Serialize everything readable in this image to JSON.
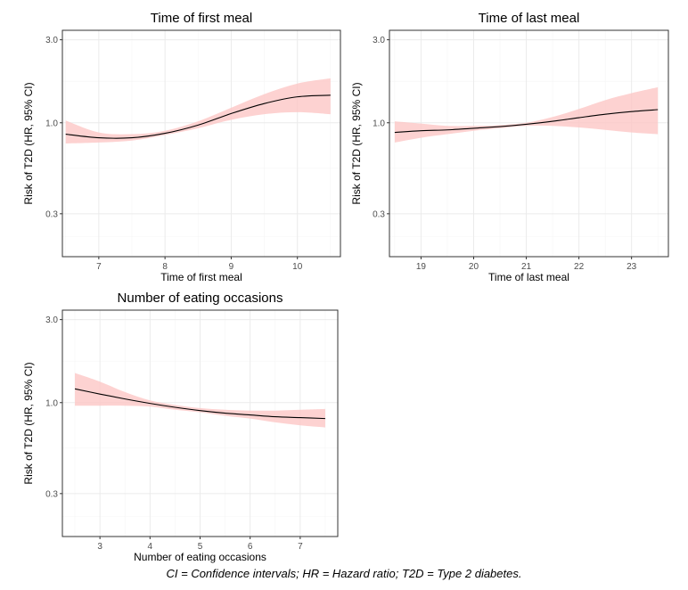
{
  "caption": "CI = Confidence intervals; HR = Hazard ratio; T2D = Type 2 diabetes.",
  "colors": {
    "band": "#fdc7c5",
    "line": "#000000",
    "panel_border": "#333333",
    "grid_major": "#ebebeb",
    "grid_minor": "#f5f5f5"
  },
  "chart_data": [
    {
      "type": "line",
      "title": "Time of first meal",
      "xlabel": "Time of first meal",
      "ylabel": "Risk of T2D (HR, 95% CI)",
      "y_scale": "log",
      "xlim": [
        6.45,
        10.65
      ],
      "ylim": [
        0.17,
        3.4
      ],
      "xticks": [
        7,
        8,
        9,
        10
      ],
      "yticks": [
        0.3,
        1.0,
        3.0
      ],
      "ytick_labels": [
        "0.3",
        "1.0",
        "3.0"
      ],
      "grid": true,
      "series": [
        {
          "x": [
            6.5,
            7.0,
            7.5,
            8.0,
            8.5,
            9.0,
            9.5,
            10.0,
            10.5
          ],
          "y": [
            0.86,
            0.82,
            0.82,
            0.87,
            0.97,
            1.13,
            1.29,
            1.41,
            1.44
          ],
          "lower": [
            0.76,
            0.77,
            0.79,
            0.85,
            0.93,
            1.04,
            1.12,
            1.15,
            1.12
          ],
          "upper": [
            1.03,
            0.88,
            0.86,
            0.9,
            1.02,
            1.22,
            1.46,
            1.68,
            1.8
          ]
        }
      ]
    },
    {
      "type": "line",
      "title": "Time of last meal",
      "xlabel": "Time of last meal",
      "ylabel": "Risk of T2D (HR, 95% CI)",
      "y_scale": "log",
      "xlim": [
        18.4,
        23.7
      ],
      "ylim": [
        0.17,
        3.4
      ],
      "xticks": [
        19,
        20,
        21,
        22,
        23
      ],
      "yticks": [
        0.3,
        1.0,
        3.0
      ],
      "ytick_labels": [
        "0.3",
        "1.0",
        "3.0"
      ],
      "grid": true,
      "series": [
        {
          "x": [
            18.5,
            19.0,
            19.5,
            20.0,
            20.5,
            21.0,
            21.5,
            22.0,
            22.5,
            23.0,
            23.5
          ],
          "y": [
            0.88,
            0.9,
            0.91,
            0.93,
            0.95,
            0.98,
            1.02,
            1.07,
            1.12,
            1.16,
            1.19
          ],
          "lower": [
            0.77,
            0.82,
            0.86,
            0.9,
            0.93,
            0.96,
            0.96,
            0.94,
            0.91,
            0.88,
            0.86
          ],
          "upper": [
            1.02,
            0.99,
            0.96,
            0.96,
            0.97,
            1.0,
            1.08,
            1.2,
            1.35,
            1.48,
            1.6
          ]
        }
      ]
    },
    {
      "type": "line",
      "title": "Number of eating occasions",
      "xlabel": "Number of eating occasions",
      "ylabel": "Risk of T2D (HR, 95% CI)",
      "y_scale": "log",
      "xlim": [
        2.25,
        7.75
      ],
      "ylim": [
        0.17,
        3.4
      ],
      "xticks": [
        3,
        4,
        5,
        6,
        7
      ],
      "yticks": [
        0.3,
        1.0,
        3.0
      ],
      "ytick_labels": [
        "0.3",
        "1.0",
        "3.0"
      ],
      "grid": true,
      "series": [
        {
          "x": [
            2.5,
            3.0,
            3.5,
            4.0,
            4.5,
            5.0,
            5.5,
            6.0,
            6.5,
            7.0,
            7.5
          ],
          "y": [
            1.2,
            1.12,
            1.05,
            0.99,
            0.94,
            0.9,
            0.87,
            0.85,
            0.83,
            0.82,
            0.81
          ],
          "lower": [
            0.96,
            0.96,
            0.96,
            0.95,
            0.91,
            0.88,
            0.84,
            0.81,
            0.77,
            0.74,
            0.72
          ],
          "upper": [
            1.48,
            1.32,
            1.15,
            1.03,
            0.97,
            0.93,
            0.91,
            0.9,
            0.9,
            0.91,
            0.92
          ]
        }
      ]
    }
  ]
}
